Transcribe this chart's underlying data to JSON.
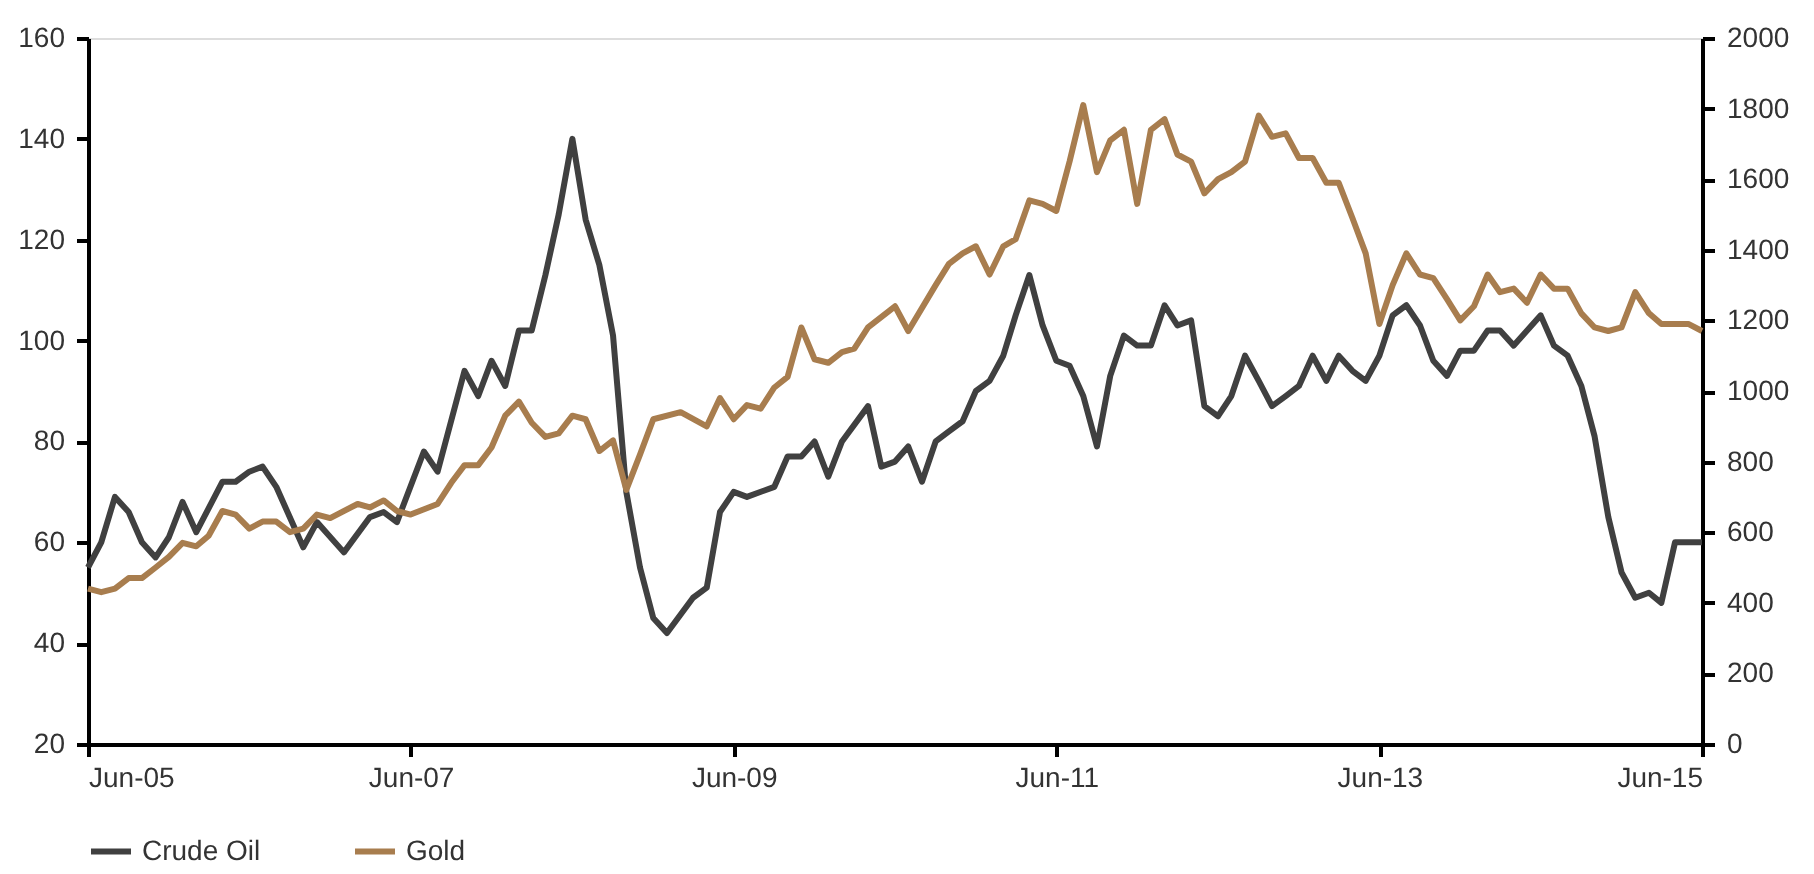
{
  "chart_data": {
    "type": "line",
    "legend": "bottom",
    "grid": false,
    "line_style": "solid",
    "marker": "none",
    "xlim": [
      "2005-06",
      "2015-06"
    ],
    "xticks": [
      {
        "value": "2005-06",
        "label": "Jun-05"
      },
      {
        "value": "2007-06",
        "label": "Jun-07"
      },
      {
        "value": "2009-06",
        "label": "Jun-09"
      },
      {
        "value": "2011-06",
        "label": "Jun-11"
      },
      {
        "value": "2013-06",
        "label": "Jun-13"
      },
      {
        "value": "2015-06",
        "label": "Jun-15"
      }
    ],
    "ylim": [
      20,
      160
    ],
    "yticks": [
      20,
      40,
      60,
      80,
      100,
      120,
      140,
      160
    ],
    "y2lim": [
      0,
      2000
    ],
    "y2ticks": [
      0,
      200,
      400,
      600,
      800,
      1000,
      1200,
      1400,
      1600,
      1800,
      2000
    ],
    "series": [
      {
        "name": "Crude Oil",
        "color": "#404040",
        "axis": "y",
        "x": [
          "2005-06",
          "2005-07",
          "2005-08",
          "2005-09",
          "2005-10",
          "2005-11",
          "2005-12",
          "2006-01",
          "2006-02",
          "2006-04",
          "2006-05",
          "2006-06",
          "2006-07",
          "2006-08",
          "2006-10",
          "2006-11",
          "2007-01",
          "2007-03",
          "2007-04",
          "2007-05",
          "2007-07",
          "2007-08",
          "2007-10",
          "2007-11",
          "2007-12",
          "2008-01",
          "2008-02",
          "2008-03",
          "2008-04",
          "2008-05",
          "2008-06",
          "2008-07",
          "2008-08",
          "2008-09",
          "2008-10",
          "2008-11",
          "2008-12",
          "2009-01",
          "2009-03",
          "2009-04",
          "2009-05",
          "2009-06",
          "2009-07",
          "2009-09",
          "2009-10",
          "2009-11",
          "2009-12",
          "2010-01",
          "2010-02",
          "2010-04",
          "2010-05",
          "2010-06",
          "2010-07",
          "2010-08",
          "2010-09",
          "2010-10",
          "2010-11",
          "2010-12",
          "2011-01",
          "2011-02",
          "2011-03",
          "2011-04",
          "2011-05",
          "2011-06",
          "2011-07",
          "2011-08",
          "2011-09",
          "2011-10",
          "2011-11",
          "2011-12",
          "2012-01",
          "2012-02",
          "2012-03",
          "2012-04",
          "2012-05",
          "2012-06",
          "2012-07",
          "2012-08",
          "2012-09",
          "2012-10",
          "2012-11",
          "2012-12",
          "2013-01",
          "2013-02",
          "2013-03",
          "2013-04",
          "2013-05",
          "2013-06",
          "2013-07",
          "2013-08",
          "2013-09",
          "2013-10",
          "2013-11",
          "2013-12",
          "2014-01",
          "2014-02",
          "2014-03",
          "2014-04",
          "2014-06",
          "2014-07",
          "2014-08",
          "2014-09",
          "2014-10",
          "2014-11",
          "2014-12",
          "2015-01",
          "2015-02",
          "2015-03",
          "2015-04",
          "2015-05",
          "2015-06"
        ],
        "values": [
          55,
          60,
          69,
          66,
          60,
          57,
          61,
          68,
          62,
          72,
          72,
          74,
          75,
          71,
          59,
          64,
          58,
          65,
          66,
          64,
          78,
          74,
          94,
          89,
          96,
          91,
          102,
          102,
          113,
          125,
          140,
          124,
          115,
          101,
          70,
          55,
          45,
          42,
          49,
          51,
          66,
          70,
          69,
          71,
          77,
          77,
          80,
          73,
          80,
          87,
          75,
          76,
          79,
          72,
          80,
          82,
          84,
          90,
          92,
          97,
          105,
          113,
          103,
          96,
          95,
          89,
          79,
          93,
          101,
          99,
          99,
          107,
          103,
          104,
          87,
          85,
          89,
          97,
          92,
          87,
          89,
          91,
          97,
          92,
          97,
          94,
          92,
          97,
          105,
          107,
          103,
          96,
          93,
          98,
          98,
          102,
          102,
          99,
          105,
          99,
          97,
          91,
          81,
          65,
          54,
          49,
          50,
          48,
          60,
          60,
          60
        ]
      },
      {
        "name": "Gold",
        "color": "#a87d4e",
        "axis": "y2",
        "x": [
          "2005-06",
          "2005-07",
          "2005-08",
          "2005-09",
          "2005-10",
          "2005-11",
          "2005-12",
          "2006-01",
          "2006-02",
          "2006-03",
          "2006-04",
          "2006-05",
          "2006-06",
          "2006-07",
          "2006-08",
          "2006-09",
          "2006-10",
          "2006-11",
          "2006-12",
          "2007-02",
          "2007-03",
          "2007-04",
          "2007-05",
          "2007-06",
          "2007-08",
          "2007-09",
          "2007-10",
          "2007-11",
          "2007-12",
          "2008-01",
          "2008-02",
          "2008-03",
          "2008-04",
          "2008-05",
          "2008-06",
          "2008-07",
          "2008-08",
          "2008-09",
          "2008-10",
          "2008-11",
          "2008-12",
          "2009-02",
          "2009-04",
          "2009-05",
          "2009-06",
          "2009-07",
          "2009-08",
          "2009-09",
          "2009-10",
          "2009-11",
          "2009-12",
          "2010-01",
          "2010-02",
          "2010-03",
          "2010-04",
          "2010-06",
          "2010-07",
          "2010-09",
          "2010-10",
          "2010-11",
          "2010-12",
          "2011-01",
          "2011-02",
          "2011-03",
          "2011-04",
          "2011-05",
          "2011-06",
          "2011-07",
          "2011-08",
          "2011-09",
          "2011-10",
          "2011-11",
          "2011-12",
          "2012-01",
          "2012-02",
          "2012-03",
          "2012-04",
          "2012-05",
          "2012-06",
          "2012-07",
          "2012-08",
          "2012-09",
          "2012-10",
          "2012-11",
          "2012-12",
          "2013-01",
          "2013-02",
          "2013-03",
          "2013-04",
          "2013-05",
          "2013-06",
          "2013-07",
          "2013-08",
          "2013-09",
          "2013-10",
          "2013-11",
          "2013-12",
          "2014-01",
          "2014-02",
          "2014-03",
          "2014-04",
          "2014-05",
          "2014-06",
          "2014-07",
          "2014-08",
          "2014-09",
          "2014-10",
          "2014-11",
          "2014-12",
          "2015-01",
          "2015-02",
          "2015-03",
          "2015-04",
          "2015-05",
          "2015-06"
        ],
        "values": [
          440,
          430,
          440,
          470,
          470,
          500,
          530,
          570,
          560,
          590,
          660,
          650,
          610,
          630,
          630,
          600,
          610,
          650,
          640,
          680,
          670,
          690,
          660,
          650,
          680,
          740,
          790,
          790,
          840,
          930,
          970,
          910,
          870,
          880,
          930,
          920,
          830,
          860,
          720,
          820,
          920,
          940,
          900,
          980,
          920,
          960,
          950,
          1010,
          1040,
          1180,
          1090,
          1080,
          1110,
          1120,
          1180,
          1240,
          1170,
          1300,
          1360,
          1390,
          1410,
          1330,
          1410,
          1430,
          1540,
          1530,
          1510,
          1650,
          1810,
          1620,
          1710,
          1740,
          1530,
          1740,
          1770,
          1670,
          1650,
          1560,
          1600,
          1620,
          1650,
          1780,
          1720,
          1730,
          1660,
          1660,
          1590,
          1590,
          1490,
          1390,
          1190,
          1300,
          1390,
          1330,
          1320,
          1260,
          1200,
          1240,
          1330,
          1280,
          1290,
          1250,
          1330,
          1290,
          1290,
          1220,
          1180,
          1170,
          1180,
          1280,
          1220,
          1190,
          1190,
          1190,
          1170
        ]
      }
    ]
  }
}
